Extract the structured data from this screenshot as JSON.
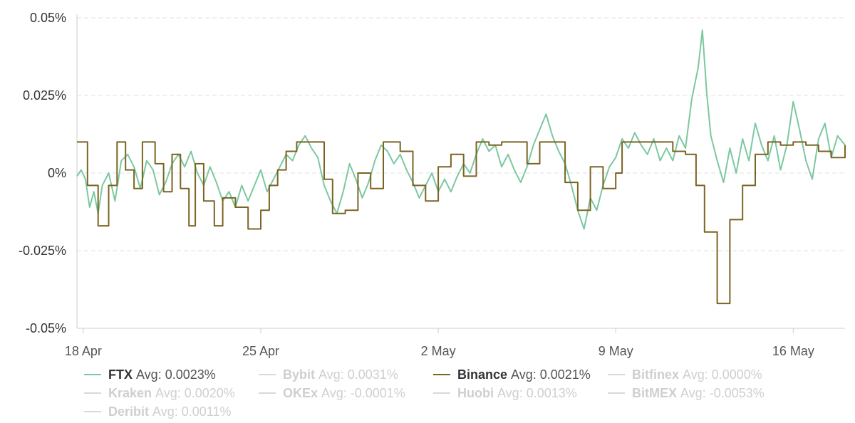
{
  "chart_data": {
    "type": "line",
    "title": "",
    "xlabel": "",
    "ylabel": "",
    "unit": "%",
    "ylim": [
      -0.05,
      0.05
    ],
    "y_ticks": [
      {
        "value": 0.05,
        "label": "0.05%"
      },
      {
        "value": 0.025,
        "label": "0.025%"
      },
      {
        "value": 0,
        "label": "0%"
      },
      {
        "value": -0.025,
        "label": "-0.025%"
      },
      {
        "value": -0.05,
        "label": "-0.05%"
      }
    ],
    "x_range": [
      "2021-04-17T18:00",
      "2021-05-18T01:00"
    ],
    "x_ticks": [
      {
        "date": "2021-04-18",
        "label": "18 Apr"
      },
      {
        "date": "2021-04-25",
        "label": "25 Apr"
      },
      {
        "date": "2021-05-02",
        "label": "2 May"
      },
      {
        "date": "2021-05-09",
        "label": "9 May"
      },
      {
        "date": "2021-05-16",
        "label": "16 May"
      }
    ],
    "grid": "horizontal dashed",
    "legend_placement": "bottom",
    "series": [
      {
        "name": "FTX",
        "avg_label": "Avg:",
        "avg": "0.0023%",
        "active": true,
        "color": "#7cc8a0",
        "points": [
          [
            "2021-04-17T18:00",
            -0.001
          ],
          [
            "2021-04-17T22:00",
            0.001
          ],
          [
            "2021-04-18T02:00",
            -0.002
          ],
          [
            "2021-04-18T06:00",
            -0.011
          ],
          [
            "2021-04-18T10:00",
            -0.006
          ],
          [
            "2021-04-18T14:00",
            -0.013
          ],
          [
            "2021-04-18T18:00",
            -0.004
          ],
          [
            "2021-04-19T00:00",
            0.0
          ],
          [
            "2021-04-19T06:00",
            -0.009
          ],
          [
            "2021-04-19T12:00",
            0.004
          ],
          [
            "2021-04-19T18:00",
            0.006
          ],
          [
            "2021-04-20T00:00",
            0.002
          ],
          [
            "2021-04-20T06:00",
            -0.005
          ],
          [
            "2021-04-20T12:00",
            0.004
          ],
          [
            "2021-04-20T18:00",
            0.001
          ],
          [
            "2021-04-21T00:00",
            -0.007
          ],
          [
            "2021-04-21T06:00",
            -0.003
          ],
          [
            "2021-04-21T12:00",
            0.003
          ],
          [
            "2021-04-21T18:00",
            0.006
          ],
          [
            "2021-04-22T00:00",
            0.002
          ],
          [
            "2021-04-22T06:00",
            0.007
          ],
          [
            "2021-04-22T12:00",
            0.0
          ],
          [
            "2021-04-22T18:00",
            -0.004
          ],
          [
            "2021-04-23T00:00",
            0.002
          ],
          [
            "2021-04-23T06:00",
            -0.003
          ],
          [
            "2021-04-23T12:00",
            -0.009
          ],
          [
            "2021-04-23T18:00",
            -0.006
          ],
          [
            "2021-04-24T00:00",
            -0.011
          ],
          [
            "2021-04-24T06:00",
            -0.004
          ],
          [
            "2021-04-24T12:00",
            -0.009
          ],
          [
            "2021-04-24T18:00",
            -0.004
          ],
          [
            "2021-04-25T00:00",
            0.001
          ],
          [
            "2021-04-25T06:00",
            -0.006
          ],
          [
            "2021-04-25T12:00",
            -0.002
          ],
          [
            "2021-04-25T18:00",
            0.002
          ],
          [
            "2021-04-26T00:00",
            0.006
          ],
          [
            "2021-04-26T06:00",
            0.004
          ],
          [
            "2021-04-26T12:00",
            0.009
          ],
          [
            "2021-04-26T18:00",
            0.012
          ],
          [
            "2021-04-27T00:00",
            0.008
          ],
          [
            "2021-04-27T06:00",
            0.005
          ],
          [
            "2021-04-27T12:00",
            -0.004
          ],
          [
            "2021-04-27T18:00",
            -0.009
          ],
          [
            "2021-04-28T00:00",
            -0.013
          ],
          [
            "2021-04-28T06:00",
            -0.006
          ],
          [
            "2021-04-28T12:00",
            0.003
          ],
          [
            "2021-04-28T18:00",
            -0.002
          ],
          [
            "2021-04-29T00:00",
            -0.008
          ],
          [
            "2021-04-29T06:00",
            -0.003
          ],
          [
            "2021-04-29T12:00",
            0.004
          ],
          [
            "2021-04-29T18:00",
            0.009
          ],
          [
            "2021-04-30T00:00",
            0.007
          ],
          [
            "2021-04-30T06:00",
            0.003
          ],
          [
            "2021-04-30T12:00",
            0.006
          ],
          [
            "2021-04-30T18:00",
            0.001
          ],
          [
            "2021-05-01T00:00",
            -0.003
          ],
          [
            "2021-05-01T06:00",
            -0.008
          ],
          [
            "2021-05-01T12:00",
            -0.004
          ],
          [
            "2021-05-01T18:00",
            0.0
          ],
          [
            "2021-05-02T00:00",
            -0.006
          ],
          [
            "2021-05-02T06:00",
            -0.002
          ],
          [
            "2021-05-02T12:00",
            -0.006
          ],
          [
            "2021-05-02T18:00",
            -0.001
          ],
          [
            "2021-05-03T00:00",
            0.003
          ],
          [
            "2021-05-03T06:00",
            0.0
          ],
          [
            "2021-05-03T12:00",
            0.006
          ],
          [
            "2021-05-03T18:00",
            0.011
          ],
          [
            "2021-05-04T00:00",
            0.007
          ],
          [
            "2021-05-04T06:00",
            0.009
          ],
          [
            "2021-05-04T12:00",
            0.002
          ],
          [
            "2021-05-04T18:00",
            0.006
          ],
          [
            "2021-05-05T00:00",
            0.001
          ],
          [
            "2021-05-05T06:00",
            -0.003
          ],
          [
            "2021-05-05T12:00",
            0.002
          ],
          [
            "2021-05-05T18:00",
            0.009
          ],
          [
            "2021-05-06T00:00",
            0.014
          ],
          [
            "2021-05-06T06:00",
            0.019
          ],
          [
            "2021-05-06T12:00",
            0.012
          ],
          [
            "2021-05-06T18:00",
            0.007
          ],
          [
            "2021-05-07T00:00",
            0.003
          ],
          [
            "2021-05-07T06:00",
            -0.004
          ],
          [
            "2021-05-07T12:00",
            -0.012
          ],
          [
            "2021-05-07T18:00",
            -0.018
          ],
          [
            "2021-05-08T00:00",
            -0.008
          ],
          [
            "2021-05-08T06:00",
            -0.012
          ],
          [
            "2021-05-08T12:00",
            -0.004
          ],
          [
            "2021-05-08T18:00",
            0.002
          ],
          [
            "2021-05-09T00:00",
            0.005
          ],
          [
            "2021-05-09T06:00",
            0.011
          ],
          [
            "2021-05-09T12:00",
            0.008
          ],
          [
            "2021-05-09T18:00",
            0.013
          ],
          [
            "2021-05-10T00:00",
            0.009
          ],
          [
            "2021-05-10T06:00",
            0.006
          ],
          [
            "2021-05-10T12:00",
            0.011
          ],
          [
            "2021-05-10T18:00",
            0.004
          ],
          [
            "2021-05-11T00:00",
            0.008
          ],
          [
            "2021-05-11T06:00",
            0.004
          ],
          [
            "2021-05-11T12:00",
            0.012
          ],
          [
            "2021-05-11T18:00",
            0.008
          ],
          [
            "2021-05-12T00:00",
            0.024
          ],
          [
            "2021-05-12T06:00",
            0.034
          ],
          [
            "2021-05-12T10:00",
            0.046
          ],
          [
            "2021-05-12T14:00",
            0.026
          ],
          [
            "2021-05-12T18:00",
            0.012
          ],
          [
            "2021-05-13T00:00",
            0.004
          ],
          [
            "2021-05-13T06:00",
            -0.003
          ],
          [
            "2021-05-13T12:00",
            0.008
          ],
          [
            "2021-05-13T18:00",
            0.0
          ],
          [
            "2021-05-14T00:00",
            0.011
          ],
          [
            "2021-05-14T06:00",
            0.004
          ],
          [
            "2021-05-14T12:00",
            0.016
          ],
          [
            "2021-05-14T18:00",
            0.009
          ],
          [
            "2021-05-15T00:00",
            0.004
          ],
          [
            "2021-05-15T06:00",
            0.012
          ],
          [
            "2021-05-15T12:00",
            0.001
          ],
          [
            "2021-05-15T18:00",
            0.009
          ],
          [
            "2021-05-16T00:00",
            0.023
          ],
          [
            "2021-05-16T06:00",
            0.014
          ],
          [
            "2021-05-16T12:00",
            0.004
          ],
          [
            "2021-05-16T18:00",
            -0.002
          ],
          [
            "2021-05-17T00:00",
            0.011
          ],
          [
            "2021-05-17T06:00",
            0.016
          ],
          [
            "2021-05-17T12:00",
            0.005
          ],
          [
            "2021-05-17T18:00",
            0.012
          ],
          [
            "2021-05-18T01:00",
            0.009
          ]
        ]
      },
      {
        "name": "Bybit",
        "avg_label": "Avg:",
        "avg": "0.0031%",
        "active": false,
        "points": []
      },
      {
        "name": "Binance",
        "avg_label": "Avg:",
        "avg": "0.0021%",
        "active": true,
        "color": "#7a6422",
        "points": [
          [
            "2021-04-17T18:00",
            0.01
          ],
          [
            "2021-04-18T04:00",
            -0.004
          ],
          [
            "2021-04-18T14:00",
            -0.017
          ],
          [
            "2021-04-19T00:00",
            -0.004
          ],
          [
            "2021-04-19T08:00",
            0.01
          ],
          [
            "2021-04-19T16:00",
            0.001
          ],
          [
            "2021-04-20T00:00",
            -0.005
          ],
          [
            "2021-04-20T08:00",
            0.01
          ],
          [
            "2021-04-20T20:00",
            0.003
          ],
          [
            "2021-04-21T04:00",
            -0.006
          ],
          [
            "2021-04-21T12:00",
            0.006
          ],
          [
            "2021-04-21T20:00",
            -0.005
          ],
          [
            "2021-04-22T04:00",
            -0.017
          ],
          [
            "2021-04-22T10:00",
            0.003
          ],
          [
            "2021-04-22T18:00",
            -0.009
          ],
          [
            "2021-04-23T04:00",
            -0.017
          ],
          [
            "2021-04-23T12:00",
            -0.008
          ],
          [
            "2021-04-24T00:00",
            -0.011
          ],
          [
            "2021-04-24T12:00",
            -0.018
          ],
          [
            "2021-04-25T00:00",
            -0.012
          ],
          [
            "2021-04-25T08:00",
            -0.004
          ],
          [
            "2021-04-25T16:00",
            0.001
          ],
          [
            "2021-04-26T00:00",
            0.007
          ],
          [
            "2021-04-26T10:00",
            0.01
          ],
          [
            "2021-04-27T00:00",
            0.01
          ],
          [
            "2021-04-27T12:00",
            -0.002
          ],
          [
            "2021-04-27T20:00",
            -0.013
          ],
          [
            "2021-04-28T08:00",
            -0.012
          ],
          [
            "2021-04-28T20:00",
            0.0
          ],
          [
            "2021-04-29T08:00",
            -0.005
          ],
          [
            "2021-04-29T20:00",
            0.01
          ],
          [
            "2021-04-30T12:00",
            0.007
          ],
          [
            "2021-05-01T00:00",
            -0.004
          ],
          [
            "2021-05-01T12:00",
            -0.009
          ],
          [
            "2021-05-02T00:00",
            0.002
          ],
          [
            "2021-05-02T12:00",
            0.006
          ],
          [
            "2021-05-03T00:00",
            -0.001
          ],
          [
            "2021-05-03T12:00",
            0.01
          ],
          [
            "2021-05-04T00:00",
            0.009
          ],
          [
            "2021-05-04T12:00",
            0.01
          ],
          [
            "2021-05-05T12:00",
            0.003
          ],
          [
            "2021-05-06T00:00",
            0.01
          ],
          [
            "2021-05-07T00:00",
            -0.003
          ],
          [
            "2021-05-07T12:00",
            -0.012
          ],
          [
            "2021-05-08T00:00",
            0.002
          ],
          [
            "2021-05-08T12:00",
            -0.005
          ],
          [
            "2021-05-09T00:00",
            0.0
          ],
          [
            "2021-05-09T06:00",
            0.01
          ],
          [
            "2021-05-10T00:00",
            0.01
          ],
          [
            "2021-05-11T06:00",
            0.007
          ],
          [
            "2021-05-11T18:00",
            0.006
          ],
          [
            "2021-05-12T04:00",
            -0.004
          ],
          [
            "2021-05-12T12:00",
            -0.019
          ],
          [
            "2021-05-13T00:00",
            -0.042
          ],
          [
            "2021-05-13T12:00",
            -0.015
          ],
          [
            "2021-05-14T00:00",
            -0.004
          ],
          [
            "2021-05-14T12:00",
            0.006
          ],
          [
            "2021-05-15T00:00",
            0.01
          ],
          [
            "2021-05-15T12:00",
            0.009
          ],
          [
            "2021-05-16T00:00",
            0.01
          ],
          [
            "2021-05-16T12:00",
            0.009
          ],
          [
            "2021-05-17T00:00",
            0.007
          ],
          [
            "2021-05-17T12:00",
            0.005
          ],
          [
            "2021-05-18T01:00",
            0.009
          ]
        ]
      },
      {
        "name": "Bitfinex",
        "avg_label": "Avg:",
        "avg": "0.0000%",
        "active": false,
        "points": []
      },
      {
        "name": "Kraken",
        "avg_label": "Avg:",
        "avg": "0.0020%",
        "active": false,
        "points": []
      },
      {
        "name": "OKEx",
        "avg_label": "Avg:",
        "avg": "-0.0001%",
        "active": false,
        "points": []
      },
      {
        "name": "Huobi",
        "avg_label": "Avg:",
        "avg": "0.0013%",
        "active": false,
        "points": []
      },
      {
        "name": "BitMEX",
        "avg_label": "Avg:",
        "avg": "-0.0053%",
        "active": false,
        "points": []
      },
      {
        "name": "Deribit",
        "avg_label": "Avg:",
        "avg": "0.0011%",
        "active": false,
        "points": []
      }
    ]
  }
}
